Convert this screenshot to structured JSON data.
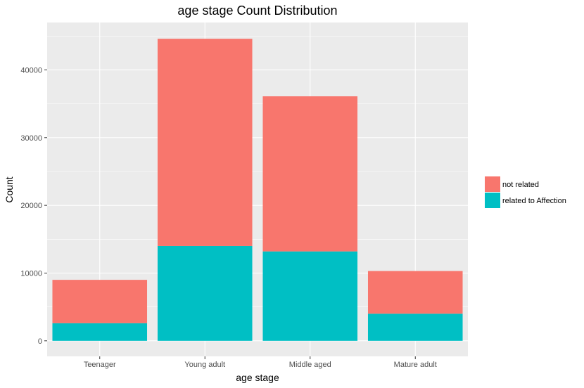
{
  "chart_data": {
    "type": "bar",
    "stacked": true,
    "title": "age stage Count Distribution",
    "xlabel": "age stage",
    "ylabel": "Count",
    "categories": [
      "Teenager",
      "Young adult",
      "Middle aged",
      "Mature adult"
    ],
    "series": [
      {
        "name": "related to Affection",
        "color": "#00BFC4",
        "values": [
          2600,
          14000,
          13200,
          4000
        ]
      },
      {
        "name": "not related",
        "color": "#F8766D",
        "values": [
          6400,
          30600,
          22900,
          6300
        ]
      }
    ],
    "yticks": [
      0,
      10000,
      20000,
      30000,
      40000
    ],
    "ytick_labels": [
      "0",
      "10000",
      "20000",
      "30000",
      "40000"
    ],
    "ylim": [
      -2300,
      47000
    ],
    "legend_order": [
      "not related",
      "related to Affection"
    ],
    "legend_position": "right",
    "grid": true,
    "panel_background": "#EBEBEB"
  }
}
